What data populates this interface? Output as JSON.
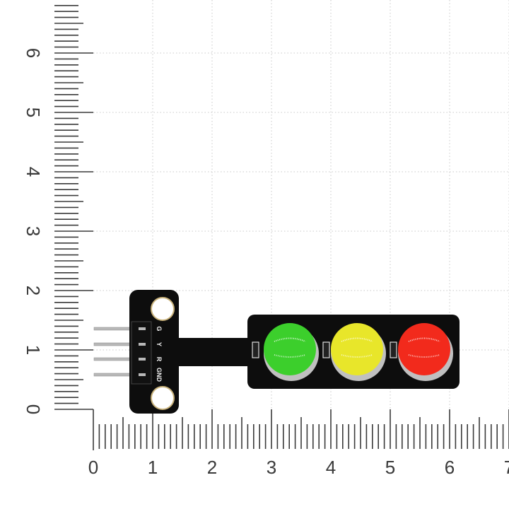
{
  "ruler": {
    "vertical_labels": [
      "0",
      "1",
      "2",
      "3",
      "4",
      "5",
      "6"
    ],
    "horizontal_labels": [
      "0",
      "1",
      "2",
      "3",
      "4",
      "5",
      "6",
      "7"
    ],
    "tick_color": "#3a3a3a",
    "grid_color": "#c8c8c8"
  },
  "board": {
    "pin_labels": [
      "G",
      "Y",
      "R",
      "GND"
    ],
    "pcb_color": "#0d0d0d",
    "leds": [
      {
        "name": "green",
        "color": "#3ccf2c"
      },
      {
        "name": "yellow",
        "color": "#e8e62a"
      },
      {
        "name": "red",
        "color": "#f22a1c"
      }
    ]
  }
}
